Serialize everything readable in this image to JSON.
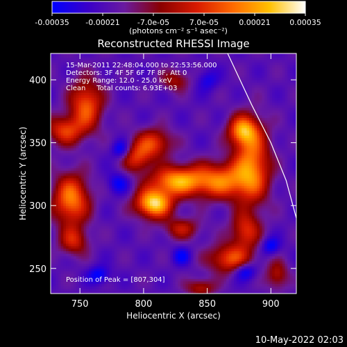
{
  "colorbar": {
    "tick_labels": [
      "-0.00035",
      "-0.00021",
      "-7.0e-05",
      "7.0e-05",
      "0.00021",
      "0.00035"
    ],
    "units": "(photons cm⁻² s⁻¹ asec⁻²)",
    "range": [
      -0.00035,
      0.00035
    ],
    "colors": [
      "#0000ff",
      "#3a00c8",
      "#6a1aa0",
      "#8a0000",
      "#d81a00",
      "#ff6a00",
      "#ffc000",
      "#ffffff"
    ]
  },
  "chart_data": {
    "type": "heatmap",
    "title": "Reconstructed RHESSI Image",
    "xlabel": "Heliocentric X (arcsec)",
    "ylabel": "Heliocentric Y (arcsec)",
    "xlim": [
      727,
      920
    ],
    "ylim": [
      230,
      421
    ],
    "x_ticks": [
      750,
      800,
      850,
      900
    ],
    "y_ticks": [
      250,
      300,
      350,
      400
    ],
    "x_tick_labels": [
      "750",
      "800",
      "850",
      "900"
    ],
    "y_tick_labels": [
      "250",
      "300",
      "350",
      "400"
    ],
    "peak": [
      807,
      304
    ],
    "limb_curve": [
      [
        866,
        421
      ],
      [
        885,
        380
      ],
      [
        900,
        350
      ],
      [
        912,
        320
      ],
      [
        920,
        290
      ]
    ],
    "sources": [
      {
        "x": 808,
        "y": 302,
        "sx": 10,
        "sy": 8,
        "amp": 1.0
      },
      {
        "x": 826,
        "y": 320,
        "sx": 14,
        "sy": 8,
        "amp": 0.8
      },
      {
        "x": 860,
        "y": 320,
        "sx": 16,
        "sy": 10,
        "amp": 0.7
      },
      {
        "x": 885,
        "y": 333,
        "sx": 10,
        "sy": 22,
        "amp": 0.72
      },
      {
        "x": 878,
        "y": 360,
        "sx": 8,
        "sy": 8,
        "amp": 0.7
      },
      {
        "x": 808,
        "y": 350,
        "sx": 10,
        "sy": 8,
        "amp": 0.55
      },
      {
        "x": 795,
        "y": 338,
        "sx": 8,
        "sy": 8,
        "amp": 0.5
      },
      {
        "x": 755,
        "y": 380,
        "sx": 9,
        "sy": 14,
        "amp": 0.65
      },
      {
        "x": 738,
        "y": 360,
        "sx": 10,
        "sy": 8,
        "amp": 0.55
      },
      {
        "x": 743,
        "y": 305,
        "sx": 10,
        "sy": 14,
        "amp": 0.75
      },
      {
        "x": 745,
        "y": 272,
        "sx": 8,
        "sy": 8,
        "amp": 0.45
      },
      {
        "x": 868,
        "y": 258,
        "sx": 12,
        "sy": 8,
        "amp": 0.6
      },
      {
        "x": 880,
        "y": 280,
        "sx": 8,
        "sy": 10,
        "amp": 0.5
      },
      {
        "x": 830,
        "y": 282,
        "sx": 10,
        "sy": 6,
        "amp": 0.4
      },
      {
        "x": 825,
        "y": 400,
        "sx": 8,
        "sy": 6,
        "amp": 0.35
      },
      {
        "x": 845,
        "y": 235,
        "sx": 8,
        "sy": 5,
        "amp": 0.4
      },
      {
        "x": 905,
        "y": 245,
        "sx": 6,
        "sy": 8,
        "amp": 0.4
      },
      {
        "x": 780,
        "y": 318,
        "sx": 6,
        "sy": 6,
        "amp": -0.3
      },
      {
        "x": 782,
        "y": 345,
        "sx": 5,
        "sy": 5,
        "amp": -0.35
      },
      {
        "x": 880,
        "y": 248,
        "sx": 6,
        "sy": 5,
        "amp": -0.4
      },
      {
        "x": 765,
        "y": 245,
        "sx": 6,
        "sy": 5,
        "amp": -0.35
      },
      {
        "x": 900,
        "y": 268,
        "sx": 5,
        "sy": 5,
        "amp": -0.35
      },
      {
        "x": 830,
        "y": 260,
        "sx": 5,
        "sy": 5,
        "amp": -0.3
      },
      {
        "x": 850,
        "y": 400,
        "sx": 6,
        "sy": 6,
        "amp": -0.25
      }
    ]
  },
  "annotations": [
    "15-Mar-2011 22:48:04.000 to 22:53:56.000",
    "Detectors: 3F 4F 5F 6F 7F 8F, Att 0",
    "Energy Range: 12.0 - 25.0 keV",
    "Clean     Total counts: 6.93E+03"
  ],
  "peak_label": "Position of Peak = [807,304]",
  "timestamp": "10-May-2022 02:03"
}
